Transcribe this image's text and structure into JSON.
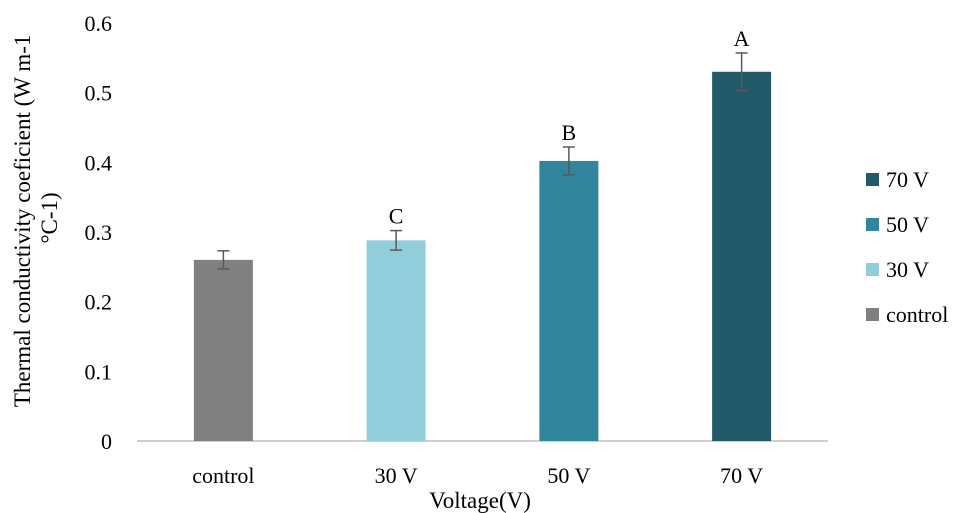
{
  "chart_data": {
    "type": "bar",
    "title": "",
    "xlabel": "Voltage(V)",
    "ylabel_lines": [
      "Thermal conductivity coeficient (W m-1",
      "°C-1)"
    ],
    "categories": [
      "control",
      "30 V",
      "50 V",
      "70 V"
    ],
    "values": [
      0.26,
      0.288,
      0.402,
      0.53
    ],
    "errors": [
      0.013,
      0.014,
      0.02,
      0.027
    ],
    "significance_labels": [
      "",
      "C",
      "B",
      "A"
    ],
    "colors": [
      "#808080",
      "#92cddc",
      "#31859c",
      "#215968"
    ],
    "ylim": [
      0,
      0.6
    ],
    "yticks": [
      "0",
      "0.1",
      "0.2",
      "0.3",
      "0.4",
      "0.5",
      "0.6"
    ],
    "grid": false,
    "legend": {
      "placement": "right",
      "entries": [
        "70 V",
        "50 V",
        "30 V",
        "control"
      ],
      "colors": [
        "#215968",
        "#31859c",
        "#92cddc",
        "#808080"
      ]
    }
  }
}
